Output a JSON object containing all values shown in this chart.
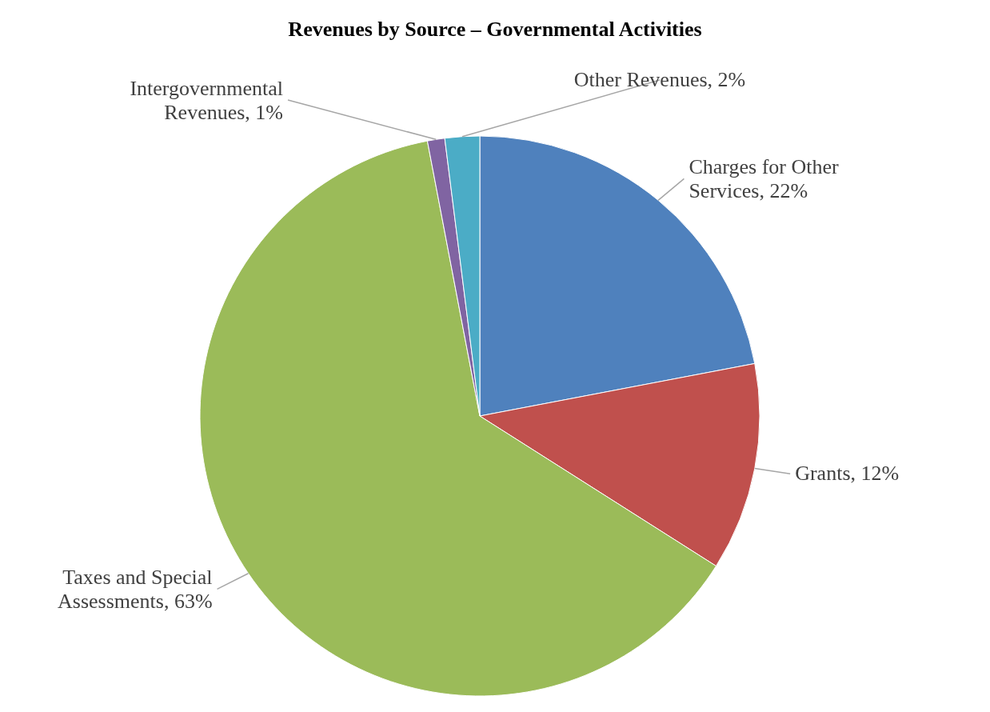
{
  "chart_data": {
    "type": "pie",
    "title": "Revenues by Source – Governmental Activities",
    "categories": [
      "Charges for Other Services",
      "Grants",
      "Taxes and Special Assessments",
      "Intergovernmental Revenues",
      "Other Revenues"
    ],
    "values": [
      22,
      12,
      63,
      1,
      2
    ],
    "value_labels": [
      "22%",
      "12%",
      "63%",
      "1%",
      "2%"
    ],
    "colors": [
      "#4f81bd",
      "#c0504d",
      "#9bbb59",
      "#8064a2",
      "#4bacc6"
    ],
    "legend": false
  }
}
